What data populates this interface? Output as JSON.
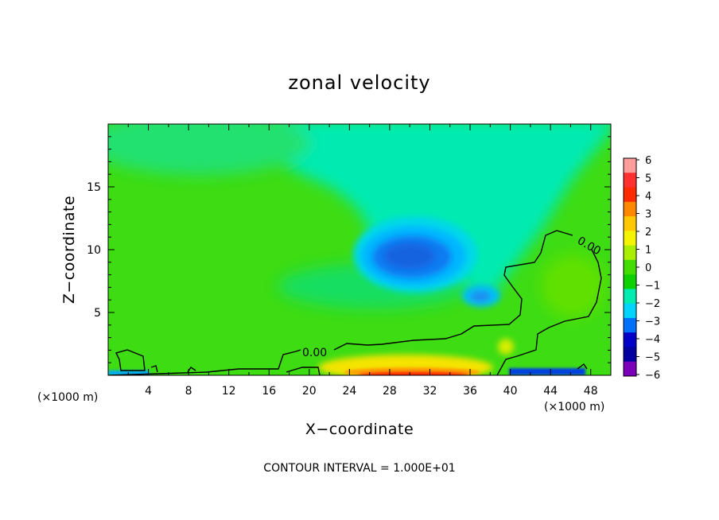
{
  "chart_data": {
    "type": "heatmap",
    "title": "zonal velocity",
    "xlabel": "X−coordinate",
    "ylabel": "Z−coordinate",
    "x_unit_left": "(×1000 m)",
    "x_unit_right": "(×1000 m)",
    "xlim": [
      0,
      50
    ],
    "ylim": [
      0,
      20
    ],
    "x_ticks": [
      "4",
      "8",
      "12",
      "16",
      "20",
      "24",
      "28",
      "32",
      "36",
      "40",
      "44",
      "48"
    ],
    "y_ticks": [
      "5",
      "10",
      "15"
    ],
    "contour_interval_text": "CONTOUR INTERVAL = 1.000E+01",
    "contour_label": "0.00",
    "colorbar": {
      "labels": [
        "6",
        "5",
        "4",
        "3",
        "2",
        "1",
        "0",
        "−1",
        "−2",
        "−3",
        "−4",
        "−5",
        "−6"
      ],
      "colors": [
        "#ff9d9d",
        "#ff3030",
        "#ff2a00",
        "#ff8800",
        "#ffc800",
        "#f4f400",
        "#aaee00",
        "#44dd00",
        "#10d100",
        "#00ecb0",
        "#00d4ff",
        "#0070ff",
        "#0000c8",
        "#0000a0",
        "#7c00b8"
      ]
    },
    "features": [
      {
        "name": "negative core upper",
        "x": 30,
        "z": 10,
        "value": -3
      },
      {
        "name": "negative core lower",
        "x": 37.5,
        "z": 6,
        "value": -2.5
      },
      {
        "name": "positive surface jet",
        "x": 31,
        "z": 0.3,
        "value": 4
      },
      {
        "name": "negative surface band",
        "x": 45,
        "z": 0.2,
        "value": -3.5
      }
    ],
    "colors": {
      "background_field": "#3ddc13",
      "upper_field": "#00eab2",
      "contour_line": "#000000"
    }
  }
}
